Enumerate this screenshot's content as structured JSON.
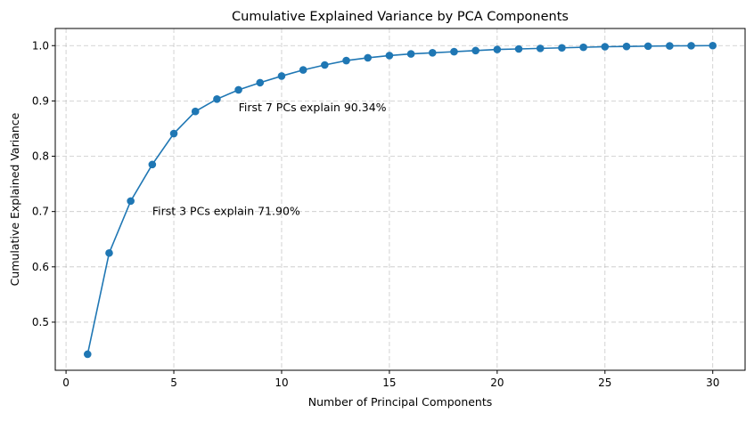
{
  "chart_data": {
    "type": "line",
    "title": "Cumulative Explained Variance by PCA Components",
    "xlabel": "Number of Principal Components",
    "ylabel": "Cumulative Explained Variance",
    "xlim": [
      -0.5,
      31.5
    ],
    "ylim": [
      0.413,
      1.031
    ],
    "xticks": [
      0,
      5,
      10,
      15,
      20,
      25,
      30
    ],
    "yticks": [
      0.5,
      0.6,
      0.7,
      0.8,
      0.9,
      1.0
    ],
    "xtick_labels": [
      "0",
      "5",
      "10",
      "15",
      "20",
      "25",
      "30"
    ],
    "ytick_labels": [
      "0.5",
      "0.6",
      "0.7",
      "0.8",
      "0.9",
      "1.0"
    ],
    "grid": true,
    "line_color": "#1f77b4",
    "x": [
      1,
      2,
      3,
      4,
      5,
      6,
      7,
      8,
      9,
      10,
      11,
      12,
      13,
      14,
      15,
      16,
      17,
      18,
      19,
      20,
      21,
      22,
      23,
      24,
      25,
      26,
      27,
      28,
      29,
      30
    ],
    "y": [
      0.442,
      0.625,
      0.719,
      0.785,
      0.841,
      0.881,
      0.9034,
      0.92,
      0.933,
      0.945,
      0.956,
      0.965,
      0.973,
      0.978,
      0.982,
      0.985,
      0.987,
      0.989,
      0.991,
      0.993,
      0.994,
      0.995,
      0.996,
      0.997,
      0.998,
      0.9985,
      0.999,
      0.9995,
      0.9998,
      1.0
    ],
    "annotations": [
      {
        "text": "First 3 PCs explain 71.90%",
        "x": 4,
        "y": 0.7
      },
      {
        "text": "First 7 PCs explain 90.34%",
        "x": 8,
        "y": 0.888
      }
    ]
  }
}
